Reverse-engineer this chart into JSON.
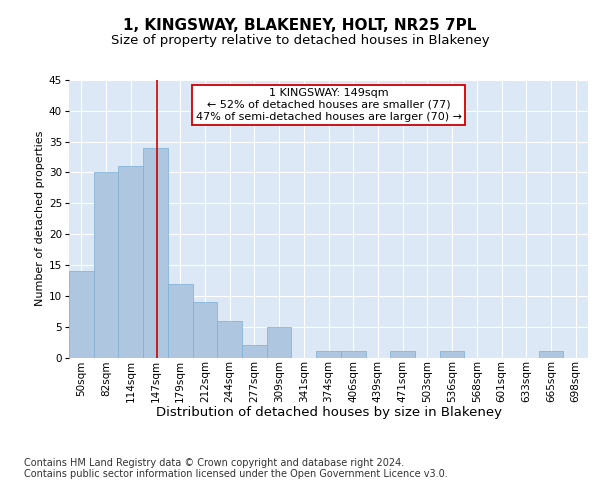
{
  "title": "1, KINGSWAY, BLAKENEY, HOLT, NR25 7PL",
  "subtitle": "Size of property relative to detached houses in Blakeney",
  "xlabel": "Distribution of detached houses by size in Blakeney",
  "ylabel": "Number of detached properties",
  "categories": [
    "50sqm",
    "82sqm",
    "114sqm",
    "147sqm",
    "179sqm",
    "212sqm",
    "244sqm",
    "277sqm",
    "309sqm",
    "341sqm",
    "374sqm",
    "406sqm",
    "439sqm",
    "471sqm",
    "503sqm",
    "536sqm",
    "568sqm",
    "601sqm",
    "633sqm",
    "665sqm",
    "698sqm"
  ],
  "values": [
    14,
    30,
    31,
    34,
    12,
    9,
    6,
    2,
    5,
    0,
    1,
    1,
    0,
    1,
    0,
    1,
    0,
    0,
    0,
    1,
    0
  ],
  "bar_color": "#aec6e0",
  "bar_edge_color": "#7aafd4",
  "vline_x_index": 3,
  "vline_color": "#cc0000",
  "annotation_text": "1 KINGSWAY: 149sqm\n← 52% of detached houses are smaller (77)\n47% of semi-detached houses are larger (70) →",
  "annotation_box_color": "#ffffff",
  "annotation_box_edge": "#cc0000",
  "ylim": [
    0,
    45
  ],
  "yticks": [
    0,
    5,
    10,
    15,
    20,
    25,
    30,
    35,
    40,
    45
  ],
  "bg_color": "#dce8f5",
  "grid_color": "#ffffff",
  "footer": "Contains HM Land Registry data © Crown copyright and database right 2024.\nContains public sector information licensed under the Open Government Licence v3.0.",
  "title_fontsize": 11,
  "subtitle_fontsize": 9.5,
  "xlabel_fontsize": 9.5,
  "ylabel_fontsize": 8,
  "tick_fontsize": 7.5,
  "annotation_fontsize": 8,
  "footer_fontsize": 7
}
